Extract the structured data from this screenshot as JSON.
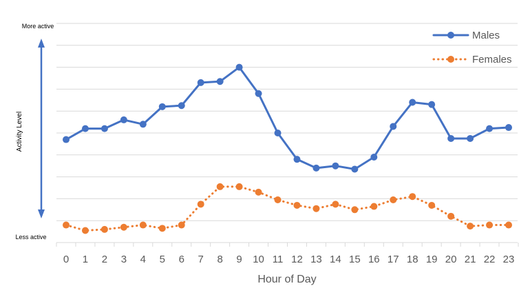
{
  "chart_data": {
    "type": "line",
    "xlabel": "Hour of Day",
    "ylabel": "Activity Level",
    "y_top_label": "More active",
    "y_bottom_label": "Less active",
    "x": [
      0,
      1,
      2,
      3,
      4,
      5,
      6,
      7,
      8,
      9,
      10,
      11,
      12,
      13,
      14,
      15,
      16,
      17,
      18,
      19,
      20,
      21,
      22,
      23
    ],
    "ylim": [
      0,
      10
    ],
    "grid": "horizontal",
    "legend": "top-right",
    "series": [
      {
        "name": "Males",
        "color": "#4472C4",
        "style": "solid",
        "values": [
          4.7,
          5.2,
          5.2,
          5.6,
          5.4,
          6.2,
          6.25,
          7.3,
          7.35,
          8.0,
          6.8,
          5.0,
          3.8,
          3.4,
          3.5,
          3.35,
          3.9,
          5.3,
          6.4,
          6.3,
          4.75,
          4.75,
          5.2,
          5.25
        ]
      },
      {
        "name": "Females",
        "color": "#ED7D31",
        "style": "dotted",
        "values": [
          0.8,
          0.55,
          0.6,
          0.7,
          0.8,
          0.65,
          0.8,
          1.75,
          2.55,
          2.55,
          2.3,
          1.95,
          1.7,
          1.55,
          1.75,
          1.5,
          1.65,
          1.95,
          2.1,
          1.7,
          1.2,
          0.75,
          0.8,
          0.8
        ]
      }
    ]
  }
}
